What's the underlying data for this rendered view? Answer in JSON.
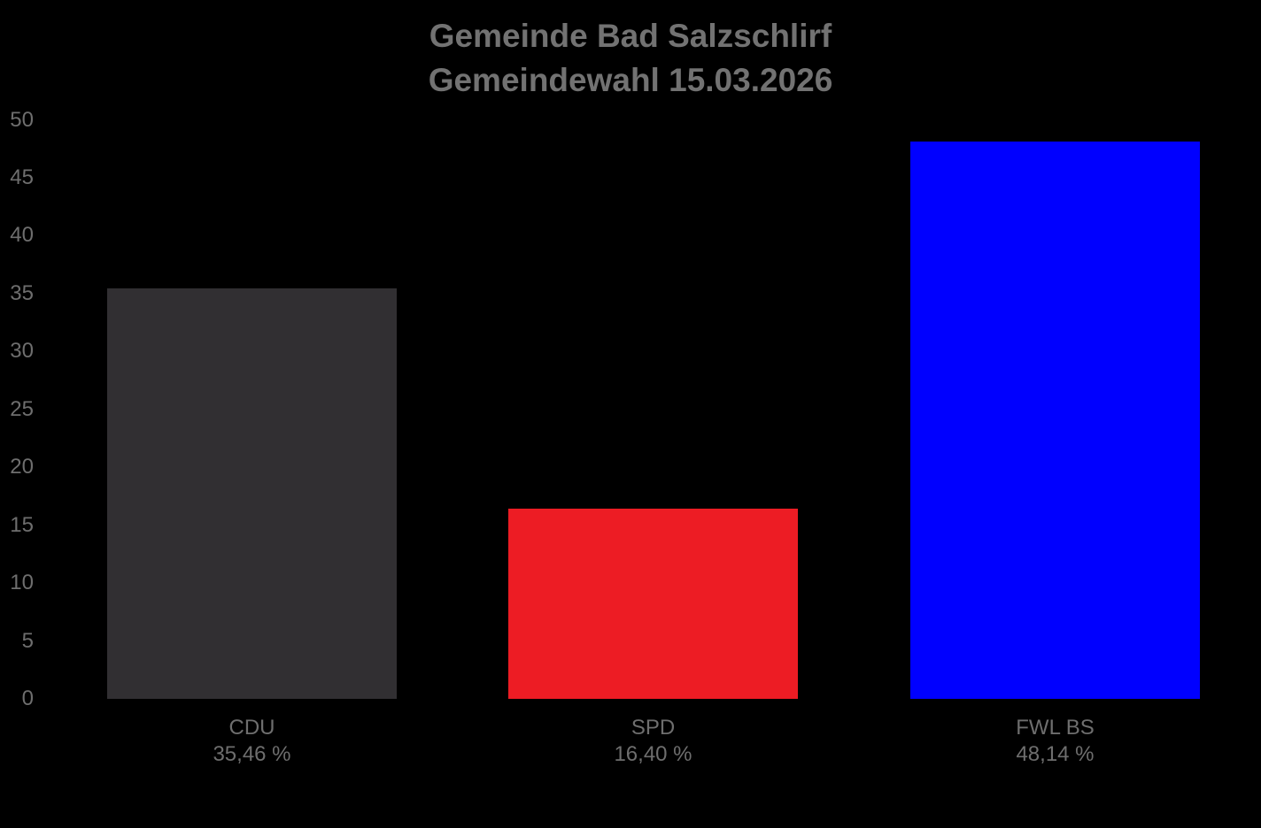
{
  "page": {
    "background_color": "#000000",
    "title_color": "#727272",
    "axis_text_color": "#6E6E6E"
  },
  "header": {
    "title_line1": "Gemeinde Bad Salzschlirf",
    "title_line2": "Gemeindewahl 15.03.2026"
  },
  "chart_data": {
    "type": "bar",
    "title": "Gemeinde Bad Salzschlirf",
    "subtitle": "Gemeindewahl 15.03.2026",
    "categories": [
      "CDU",
      "SPD",
      "FWL BS"
    ],
    "values": [
      35.46,
      16.4,
      48.14
    ],
    "value_labels": [
      "35,46 %",
      "16,40 %",
      "48,14 %"
    ],
    "bar_colors": [
      "#312F32",
      "#ED1C24",
      "#0000FF"
    ],
    "xlabel": "",
    "ylabel": "",
    "ylim": [
      0,
      50
    ],
    "yticks": [
      0,
      5,
      10,
      15,
      20,
      25,
      30,
      35,
      40,
      45,
      50
    ],
    "grid": false,
    "legend": false,
    "background": "#000000"
  }
}
